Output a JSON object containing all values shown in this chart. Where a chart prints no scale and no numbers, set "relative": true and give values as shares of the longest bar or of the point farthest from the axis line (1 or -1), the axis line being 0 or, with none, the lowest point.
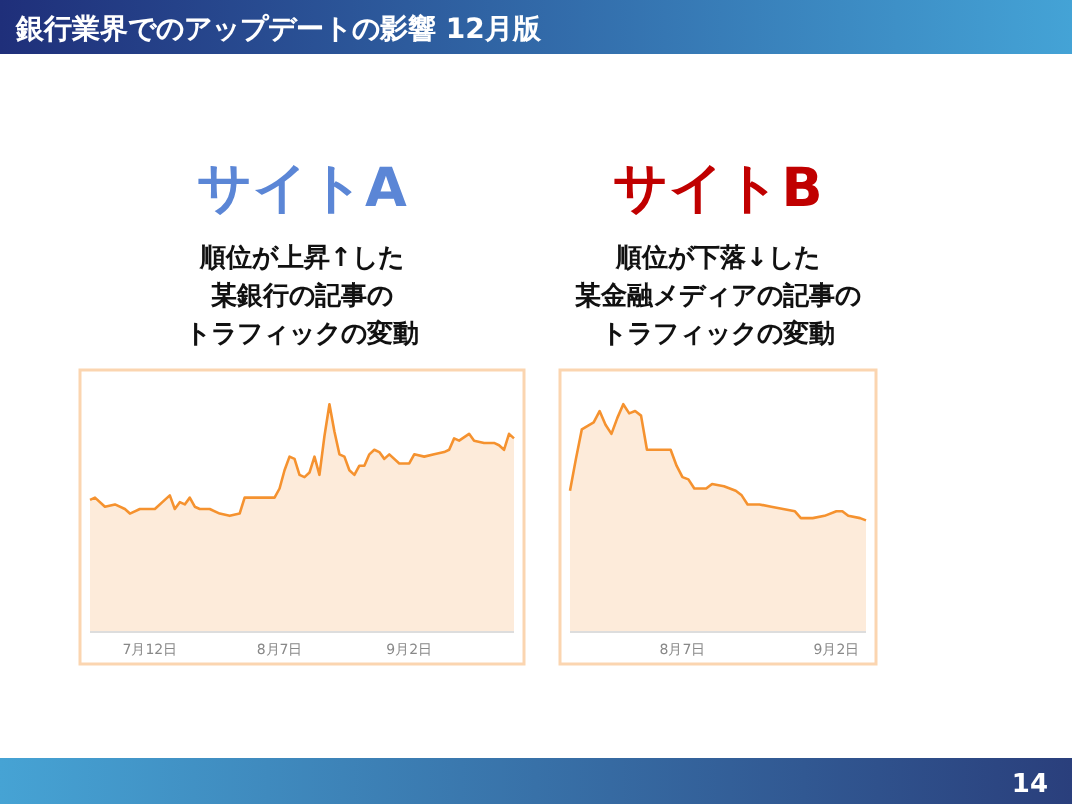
{
  "chart_data": [
    {
      "type": "other",
      "title": "銀行業界でのアップデートの影響 12月版",
      "annotations": [
        "14"
      ]
    },
    {
      "type": "area",
      "title": "サイトA",
      "subtitle": "順位が上昇↑した",
      "annotations": [
        "某銀行の記事の",
        "トラフィックの変動"
      ],
      "relative": true,
      "xlim": [
        "--06-30",
        "--09-23"
      ],
      "xticks": [
        {
          "value": "--07-12",
          "label": "7月12日"
        },
        {
          "value": "--08-07",
          "label": "8月7日"
        },
        {
          "value": "--09-02",
          "label": "9月2日"
        }
      ],
      "series": [
        {
          "color": "#f5922f",
          "x": [
            "--06-30",
            "--07-01",
            "--07-03",
            "--07-05",
            "--07-07",
            "--07-08",
            "--07-10",
            "--07-13",
            "--07-15",
            "--07-16",
            "--07-17",
            "--07-18",
            "--07-19",
            "--07-20",
            "--07-21",
            "--07-22",
            "--07-24",
            "--07-26",
            "--07-28",
            "--07-30",
            "--07-31",
            "--08-02",
            "--08-06",
            "--08-07",
            "--08-08",
            "--08-09",
            "--08-10",
            "--08-11",
            "--08-12",
            "--08-13",
            "--08-14",
            "--08-15",
            "--08-16",
            "--08-17",
            "--08-18",
            "--08-19",
            "--08-20",
            "--08-21",
            "--08-22",
            "--08-23",
            "--08-24",
            "--08-25",
            "--08-26",
            "--08-27",
            "--08-28",
            "--08-29",
            "--08-31",
            "--09-02",
            "--09-03",
            "--09-05",
            "--09-07",
            "--09-09",
            "--09-10",
            "--09-11",
            "--09-12",
            "--09-14",
            "--09-15",
            "--09-17",
            "--09-19",
            "--09-20",
            "--09-21",
            "--09-22",
            "--09-23"
          ],
          "values": [
            0.58,
            0.59,
            0.55,
            0.56,
            0.54,
            0.52,
            0.54,
            0.54,
            0.58,
            0.6,
            0.54,
            0.57,
            0.56,
            0.59,
            0.55,
            0.54,
            0.54,
            0.52,
            0.51,
            0.52,
            0.59,
            0.59,
            0.59,
            0.63,
            0.71,
            0.77,
            0.76,
            0.69,
            0.68,
            0.7,
            0.77,
            0.69,
            0.86,
            1,
            0.88,
            0.78,
            0.77,
            0.71,
            0.69,
            0.73,
            0.73,
            0.78,
            0.8,
            0.79,
            0.76,
            0.78,
            0.74,
            0.74,
            0.78,
            0.77,
            0.78,
            0.79,
            0.8,
            0.85,
            0.84,
            0.87,
            0.84,
            0.83,
            0.83,
            0.82,
            0.8,
            0.87,
            0.85
          ]
        }
      ]
    },
    {
      "type": "area",
      "title": "サイトB",
      "subtitle": "順位が下落↓した",
      "annotations": [
        "某金融メディアの記事の",
        "トラフィックの変動"
      ],
      "relative": true,
      "xlim": [
        "--07-19",
        "--09-07"
      ],
      "xticks": [
        {
          "value": "--08-07",
          "label": "8月7日"
        },
        {
          "value": "--09-02",
          "label": "9月2日"
        }
      ],
      "series": [
        {
          "color": "#f5922f",
          "x": [
            "--07-19",
            "--07-20",
            "--07-21",
            "--07-23",
            "--07-24",
            "--07-25",
            "--07-26",
            "--07-27",
            "--07-28",
            "--07-29",
            "--07-30",
            "--07-31",
            "--08-01",
            "--08-05",
            "--08-06",
            "--08-07",
            "--08-08",
            "--08-09",
            "--08-11",
            "--08-12",
            "--08-14",
            "--08-16",
            "--08-17",
            "--08-18",
            "--08-20",
            "--08-22",
            "--08-24",
            "--08-26",
            "--08-27",
            "--08-29",
            "--08-31",
            "--09-02",
            "--09-03",
            "--09-04",
            "--09-06",
            "--09-07"
          ],
          "values": [
            0.62,
            0.76,
            0.89,
            0.92,
            0.97,
            0.91,
            0.87,
            0.94,
            1,
            0.96,
            0.97,
            0.95,
            0.8,
            0.8,
            0.73,
            0.68,
            0.67,
            0.63,
            0.63,
            0.65,
            0.64,
            0.62,
            0.6,
            0.56,
            0.56,
            0.55,
            0.54,
            0.53,
            0.5,
            0.5,
            0.51,
            0.53,
            0.53,
            0.51,
            0.5,
            0.49
          ]
        }
      ]
    }
  ]
}
